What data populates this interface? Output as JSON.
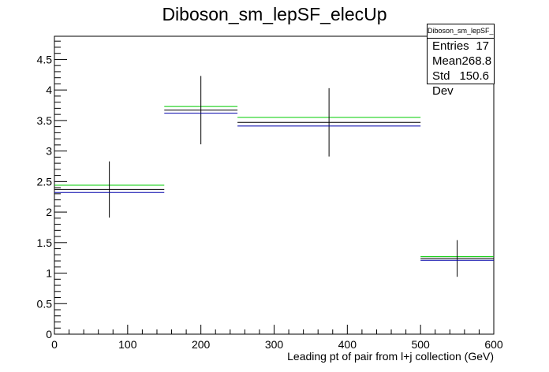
{
  "chart_data": {
    "type": "histogram",
    "title": "Diboson_sm_lepSF_elecUp",
    "xlabel": "Leading pt of pair from l+j collection (GeV)",
    "ylabel": "",
    "xlim": [
      0,
      600
    ],
    "ylim": [
      0,
      4.88
    ],
    "x_ticks": [
      0,
      100,
      200,
      300,
      400,
      500,
      600
    ],
    "y_ticks": [
      0,
      0.5,
      1,
      1.5,
      2,
      2.5,
      3,
      3.5,
      4,
      4.5
    ],
    "bins": [
      {
        "low": 0,
        "high": 150,
        "center": 75
      },
      {
        "low": 150,
        "high": 250,
        "center": 200
      },
      {
        "low": 250,
        "high": 500,
        "center": 375
      },
      {
        "low": 500,
        "high": 600,
        "center": 550
      }
    ],
    "series": [
      {
        "color": "#00cc00",
        "values": [
          2.44,
          3.73,
          3.55,
          1.27
        ]
      },
      {
        "color": "#000000",
        "values": [
          2.37,
          3.67,
          3.47,
          1.24
        ],
        "errors": [
          0.46,
          0.56,
          0.56,
          0.3
        ]
      },
      {
        "color": "#0000aa",
        "values": [
          2.32,
          3.62,
          3.41,
          1.21
        ]
      }
    ],
    "legend": {
      "position": "top-right",
      "title": "Diboson_sm_lepSF_elecUp",
      "entries_label": "Entries",
      "entries_value": "17",
      "mean_label": "Mean",
      "mean_value": "268.8",
      "stddev_label": "Std Dev",
      "stddev_value": "150.6"
    }
  }
}
